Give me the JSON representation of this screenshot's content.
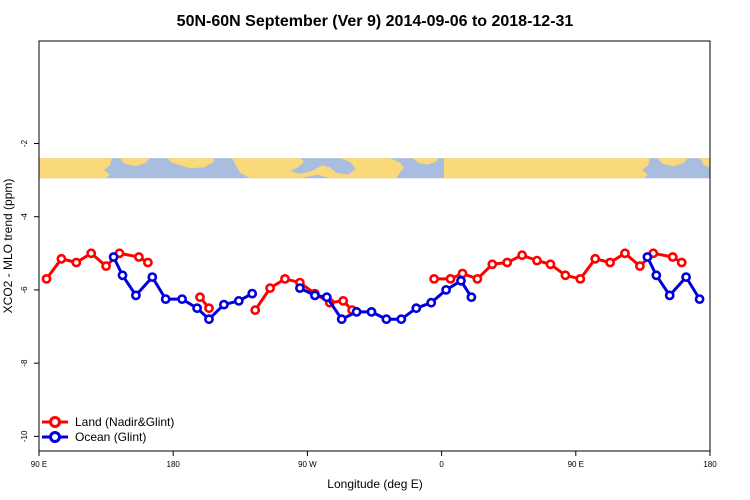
{
  "chart_data": {
    "type": "line",
    "title": "50N-60N September (Ver 9)   2014-09-06 to 2018-12-31",
    "xlabel": "Longitude (deg E)",
    "ylabel": "XCO2 - MLO trend (ppm)",
    "xlim": [
      90,
      540
    ],
    "ylim": [
      -10.4,
      0.8
    ],
    "x_ticks": [
      {
        "value": 90,
        "label": "90 E"
      },
      {
        "value": 180,
        "label": "180"
      },
      {
        "value": 270,
        "label": "90 W"
      },
      {
        "value": 360,
        "label": "0"
      },
      {
        "value": 450,
        "label": "90 E"
      },
      {
        "value": 540,
        "label": "180"
      }
    ],
    "y_ticks": [
      {
        "value": -2,
        "label": "-2"
      },
      {
        "value": -4,
        "label": "-4"
      },
      {
        "value": -6,
        "label": "-6"
      },
      {
        "value": -8,
        "label": "-8"
      },
      {
        "value": -10,
        "label": "-10"
      }
    ],
    "map_band": {
      "y_top": -2.4,
      "y_bottom": -2.95,
      "ocean_color": "#a9bde0",
      "land_color": "#f9d97a"
    },
    "legend": {
      "position": "bottom-left"
    },
    "series": [
      {
        "name": "Land (Nadir&Glint)",
        "color": "#ff0000",
        "segments": [
          [
            [
              95,
              -5.7
            ],
            [
              105,
              -5.15
            ],
            [
              115,
              -5.25
            ],
            [
              125,
              -5.0
            ],
            [
              135,
              -5.35
            ],
            [
              144,
              -5.0
            ],
            [
              157,
              -5.1
            ],
            [
              163,
              -5.25
            ]
          ],
          [
            [
              198,
              -6.2
            ],
            [
              204,
              -6.5
            ]
          ],
          [
            [
              235,
              -6.55
            ],
            [
              245,
              -5.95
            ],
            [
              255,
              -5.7
            ],
            [
              265,
              -5.8
            ],
            [
              275,
              -6.1
            ],
            [
              285,
              -6.35
            ],
            [
              294,
              -6.3
            ],
            [
              300,
              -6.55
            ]
          ],
          [
            [
              355,
              -5.7
            ],
            [
              366,
              -5.7
            ],
            [
              374,
              -5.55
            ],
            [
              384,
              -5.7
            ],
            [
              394,
              -5.3
            ],
            [
              404,
              -5.25
            ],
            [
              414,
              -5.05
            ],
            [
              424,
              -5.2
            ],
            [
              433,
              -5.3
            ],
            [
              443,
              -5.6
            ],
            [
              453,
              -5.7
            ],
            [
              463,
              -5.15
            ],
            [
              473,
              -5.25
            ],
            [
              483,
              -5.0
            ],
            [
              493,
              -5.35
            ],
            [
              502,
              -5.0
            ],
            [
              515,
              -5.1
            ],
            [
              521,
              -5.25
            ]
          ]
        ]
      },
      {
        "name": "Ocean (Glint)",
        "color": "#0000dd",
        "segments": [
          [
            [
              140,
              -5.1
            ],
            [
              146,
              -5.6
            ],
            [
              155,
              -6.15
            ],
            [
              166,
              -5.65
            ],
            [
              175,
              -6.25
            ],
            [
              186,
              -6.25
            ],
            [
              196,
              -6.5
            ],
            [
              204,
              -6.8
            ],
            [
              214,
              -6.4
            ],
            [
              224,
              -6.3
            ],
            [
              233,
              -6.1
            ]
          ],
          [
            [
              265,
              -5.95
            ],
            [
              275,
              -6.15
            ],
            [
              283,
              -6.2
            ],
            [
              293,
              -6.8
            ],
            [
              303,
              -6.6
            ],
            [
              313,
              -6.6
            ],
            [
              323,
              -6.8
            ],
            [
              333,
              -6.8
            ],
            [
              343,
              -6.5
            ],
            [
              353,
              -6.35
            ],
            [
              363,
              -6.0
            ],
            [
              373,
              -5.75
            ],
            [
              380,
              -6.2
            ]
          ],
          [
            [
              498,
              -5.1
            ],
            [
              504,
              -5.6
            ],
            [
              513,
              -6.15
            ],
            [
              524,
              -5.65
            ],
            [
              533,
              -6.25
            ]
          ]
        ]
      }
    ]
  }
}
